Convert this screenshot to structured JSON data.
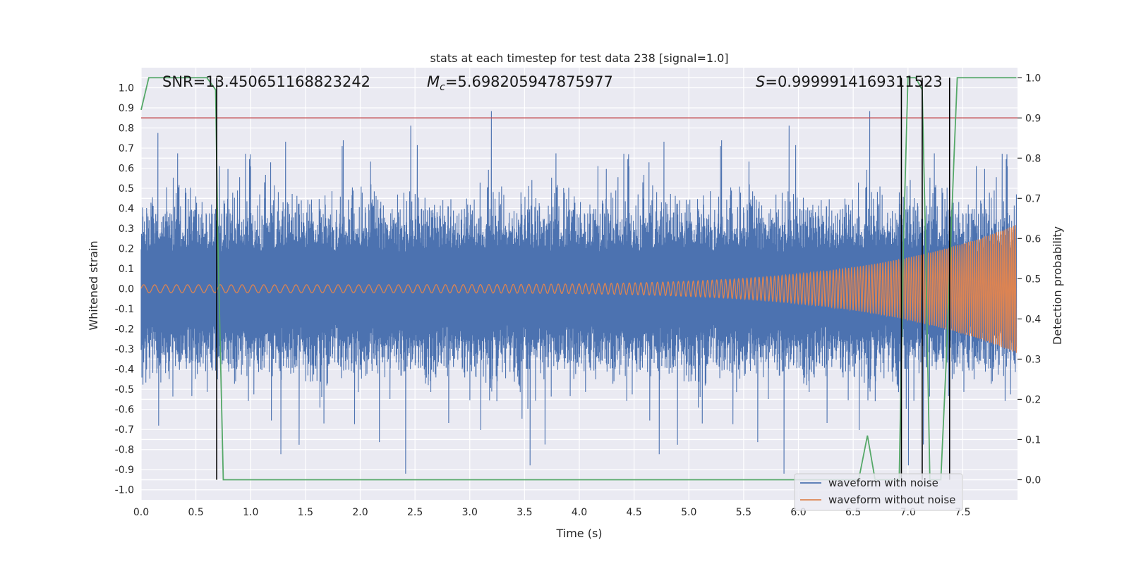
{
  "chart_data": {
    "type": "line",
    "title": "stats at each timestep for test data 238 [signal=1.0]",
    "xlabel": "Time (s)",
    "ylabel": "Whitened strain",
    "ylabel_right": "Detection probability",
    "xlim": [
      0.0,
      8.0
    ],
    "ylim": [
      -1.05,
      1.1
    ],
    "ylim_right": [
      -0.05,
      1.025
    ],
    "x_ticks": [
      "0.0",
      "0.5",
      "1.0",
      "1.5",
      "2.0",
      "2.5",
      "3.0",
      "3.5",
      "4.0",
      "4.5",
      "5.0",
      "5.5",
      "6.0",
      "6.5",
      "7.0",
      "7.5"
    ],
    "y_ticks": [
      "1.0",
      "0.9",
      "0.8",
      "0.7",
      "0.6",
      "0.5",
      "0.4",
      "0.3",
      "0.2",
      "0.1",
      "0.0",
      "-0.1",
      "-0.2",
      "-0.3",
      "-0.4",
      "-0.5",
      "-0.6",
      "-0.7",
      "-0.8",
      "-0.9",
      "-1.0"
    ],
    "y_ticks_right": [
      "1.0",
      "0.9",
      "0.8",
      "0.7",
      "0.6",
      "0.5",
      "0.4",
      "0.3",
      "0.2",
      "0.1",
      "0.0"
    ],
    "grid": true,
    "legend_position": "lower-right",
    "annotations": {
      "snr": "SNR=13.450651168823242",
      "mc_symbol": "M",
      "mc_sub": "c",
      "mc_value": "=5.698205947875977",
      "s_symbol": "S",
      "s_value": "=0.9999914169311523"
    },
    "series": [
      {
        "name": "waveform with noise",
        "color": "#4c72b0",
        "kind": "noise",
        "envelope_approx": 0.75
      },
      {
        "name": "waveform without noise",
        "color": "#dd8452",
        "kind": "chirp",
        "start_amplitude": 0.02,
        "end_amplitude": 0.32,
        "start_freq_hz": 10,
        "end_freq_hz": 60
      }
    ],
    "threshold_line": {
      "y_right": 0.9,
      "color": "#c44e52"
    },
    "detection_probability": {
      "color": "#55a868",
      "points": [
        [
          0.0,
          0.92
        ],
        [
          0.07,
          1.0
        ],
        [
          0.12,
          1.0
        ],
        [
          0.6,
          1.0
        ],
        [
          0.68,
          0.97
        ],
        [
          0.7,
          0.6
        ],
        [
          0.75,
          0.0
        ],
        [
          1.0,
          0.0
        ],
        [
          6.55,
          0.0
        ],
        [
          6.63,
          0.11
        ],
        [
          6.7,
          0.0
        ],
        [
          6.92,
          0.0
        ],
        [
          6.96,
          0.6
        ],
        [
          7.0,
          1.0
        ],
        [
          7.07,
          1.0
        ],
        [
          7.13,
          0.97
        ],
        [
          7.16,
          0.6
        ],
        [
          7.2,
          0.0
        ],
        [
          7.3,
          0.0
        ],
        [
          7.35,
          0.3
        ],
        [
          7.42,
          0.8
        ],
        [
          7.45,
          1.0
        ],
        [
          7.99,
          1.0
        ]
      ]
    },
    "vertical_markers": [
      0.69,
      6.94,
      7.13,
      7.38
    ],
    "marker_color": "#000000"
  }
}
